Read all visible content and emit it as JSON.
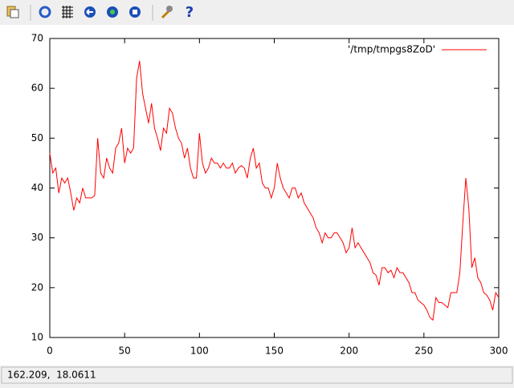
{
  "chart_data": {
    "type": "line",
    "x": [
      0,
      2,
      4,
      6,
      8,
      10,
      12,
      14,
      16,
      18,
      20,
      22,
      24,
      26,
      28,
      30,
      32,
      34,
      36,
      38,
      40,
      42,
      44,
      46,
      48,
      50,
      52,
      54,
      56,
      58,
      60,
      62,
      64,
      66,
      68,
      70,
      72,
      74,
      76,
      78,
      80,
      82,
      84,
      86,
      88,
      90,
      92,
      94,
      96,
      98,
      100,
      102,
      104,
      106,
      108,
      110,
      112,
      114,
      116,
      118,
      120,
      122,
      124,
      126,
      128,
      130,
      132,
      134,
      136,
      138,
      140,
      142,
      144,
      146,
      148,
      150,
      152,
      154,
      156,
      158,
      160,
      162,
      164,
      166,
      168,
      170,
      172,
      174,
      176,
      178,
      180,
      182,
      184,
      186,
      188,
      190,
      192,
      194,
      196,
      198,
      200,
      202,
      204,
      206,
      208,
      210,
      212,
      214,
      216,
      218,
      220,
      222,
      224,
      226,
      228,
      230,
      232,
      234,
      236,
      238,
      240,
      242,
      244,
      246,
      248,
      250,
      252,
      254,
      256,
      258,
      260,
      262,
      264,
      266,
      268,
      270,
      272,
      274,
      276,
      278,
      280,
      282,
      284,
      286,
      288,
      290,
      292,
      294,
      296,
      298,
      300
    ],
    "series": [
      {
        "name": "'/tmp/tmpgs8ZoD'",
        "color": "#ff0000",
        "values": [
          47,
          43,
          44,
          39,
          42,
          41,
          42,
          39,
          35.5,
          38,
          37,
          40,
          38,
          38,
          38,
          38.5,
          50,
          43,
          42,
          46,
          44,
          43,
          48,
          49,
          52,
          45,
          48,
          47,
          48,
          62,
          65.5,
          59,
          56,
          53,
          57,
          52,
          50,
          47.5,
          52,
          51,
          56,
          55,
          52,
          50,
          49,
          46,
          48,
          44,
          42,
          42,
          51,
          45,
          43,
          44,
          46,
          45,
          45,
          44,
          45,
          44,
          44,
          45,
          43,
          44,
          44.5,
          44,
          42,
          46,
          48,
          44,
          45,
          41,
          40,
          40,
          38,
          40,
          45,
          42,
          40,
          39,
          38,
          40,
          40,
          38,
          39,
          37,
          36,
          35,
          34,
          32,
          31,
          29,
          31,
          30,
          30,
          31,
          31,
          30,
          29,
          27,
          28,
          32,
          28,
          29,
          28,
          27,
          26,
          25,
          23,
          22.5,
          20.5,
          24,
          24,
          23,
          23.5,
          22,
          24,
          23,
          23,
          22,
          21,
          19,
          19,
          17.5,
          17,
          16.5,
          15.5,
          14,
          13.5,
          18,
          17,
          17,
          16.5,
          16,
          19,
          19,
          19,
          23,
          33,
          42,
          36,
          24,
          26,
          22,
          21,
          19,
          18.5,
          17.5,
          15.5,
          19,
          18
        ]
      }
    ],
    "xlim": [
      0,
      300
    ],
    "xticks": [
      0,
      50,
      100,
      150,
      200,
      250,
      300
    ],
    "ylim": [
      10,
      70
    ],
    "yticks": [
      10,
      20,
      30,
      40,
      50,
      60,
      70
    ],
    "legend": "top-right"
  },
  "status_bar": "162.209,  18.0611"
}
